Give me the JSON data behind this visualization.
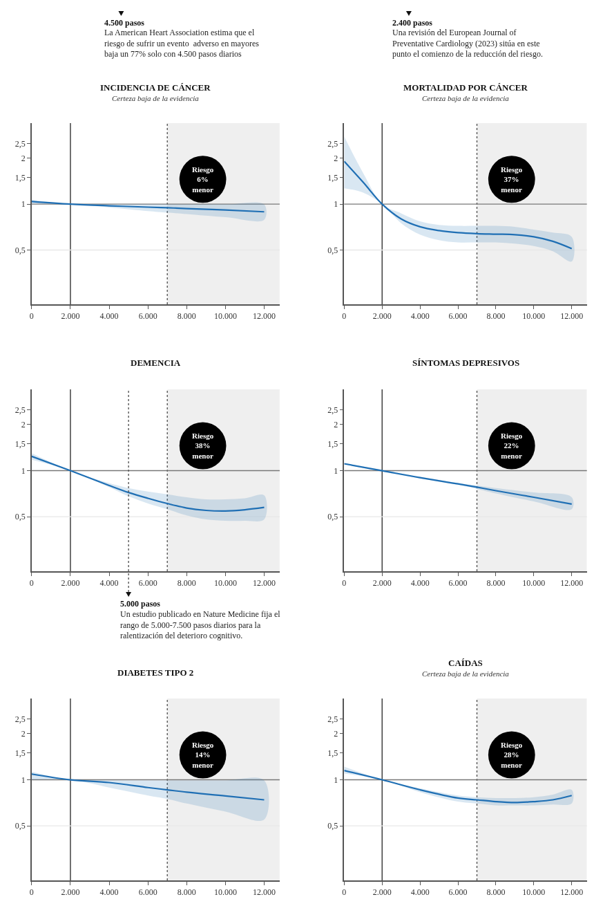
{
  "chart_data": [
    {
      "type": "line",
      "title": "INCIDENCIA DE CÁNCER",
      "subtitle": "Certeza baja de la evidencia",
      "x": [
        0,
        2000,
        4000,
        6000,
        7000,
        8000,
        10000,
        12000
      ],
      "series": [
        {
          "color": "#1f6fb4",
          "values": [
            1.04,
            1.0,
            0.975,
            0.955,
            0.946,
            0.935,
            0.915,
            0.89
          ],
          "lower": [
            1.01,
            1.0,
            0.95,
            0.9,
            0.88,
            0.86,
            0.82,
            0.79
          ],
          "upper": [
            1.07,
            1.0,
            0.995,
            0.995,
            0.995,
            0.995,
            0.995,
            0.995
          ]
        }
      ],
      "xlim": [
        0,
        12800
      ],
      "xticks": [
        0,
        {
          "value": 2000,
          "label": "2.000"
        },
        {
          "value": 4000,
          "label": "4.000"
        },
        {
          "value": 6000,
          "label": "6.000"
        },
        {
          "value": 8000,
          "label": "8.000"
        },
        {
          "value": 10000,
          "label": "10.000"
        },
        {
          "value": 12000,
          "label": "12.000"
        }
      ],
      "ylim": [
        0.22,
        3.4
      ],
      "yticks": [
        {
          "value": 0.5,
          "label": "0,5"
        },
        1,
        {
          "value": 1.5,
          "label": "1,5"
        },
        2,
        {
          "value": 2.5,
          "label": "2,5"
        }
      ],
      "log": true,
      "marker": "none",
      "line_style": "solid",
      "ref_lines": [
        {
          "axis": "x",
          "value": 2000,
          "color": "#333333",
          "line_style": "solid"
        },
        {
          "axis": "x",
          "value": 7000,
          "color": "#555555",
          "line_style": "dotted"
        },
        {
          "axis": "y",
          "value": 1,
          "color": "#777777",
          "line_style": "solid"
        },
        {
          "axis": "y",
          "value": 0.5,
          "color": "#e8e8e8",
          "line_style": "solid"
        }
      ],
      "bands": [
        {
          "axis": "x",
          "from": 7000,
          "to": 12800,
          "color": "#efefef"
        }
      ],
      "annotations": [
        "Riesgo\n6%\nmenor",
        "4.500 pasos",
        "La American Heart Association estima que el\nriesgo de sufrir un evento  adverso en mayores\nbaja un 77% solo con 4.500 pasos diarios"
      ]
    },
    {
      "type": "line",
      "title": "MORTALIDAD POR CÁNCER",
      "subtitle": "Certeza baja de la evidencia",
      "x": [
        0,
        1000,
        2000,
        3000,
        4000,
        5000,
        6000,
        7000,
        8000,
        9000,
        10000,
        11000,
        12000
      ],
      "series": [
        {
          "color": "#1f6fb4",
          "values": [
            1.91,
            1.39,
            1.0,
            0.8,
            0.71,
            0.67,
            0.65,
            0.64,
            0.635,
            0.63,
            0.61,
            0.57,
            0.51
          ],
          "lower": [
            1.27,
            1.19,
            1.0,
            0.75,
            0.63,
            0.58,
            0.56,
            0.56,
            0.56,
            0.55,
            0.53,
            0.49,
            0.42
          ],
          "upper": [
            2.77,
            1.6,
            1.0,
            0.87,
            0.77,
            0.73,
            0.72,
            0.72,
            0.72,
            0.71,
            0.68,
            0.65,
            0.61
          ]
        }
      ],
      "xlim": [
        0,
        12800
      ],
      "xticks": [
        0,
        {
          "value": 2000,
          "label": "2.000"
        },
        {
          "value": 4000,
          "label": "4.000"
        },
        {
          "value": 6000,
          "label": "6.000"
        },
        {
          "value": 8000,
          "label": "8.000"
        },
        {
          "value": 10000,
          "label": "10.000"
        },
        {
          "value": 12000,
          "label": "12.000"
        }
      ],
      "ylim": [
        0.22,
        3.4
      ],
      "yticks": [
        {
          "value": 0.5,
          "label": "0,5"
        },
        1,
        {
          "value": 1.5,
          "label": "1,5"
        },
        2,
        {
          "value": 2.5,
          "label": "2,5"
        }
      ],
      "log": true,
      "marker": "none",
      "line_style": "solid",
      "ref_lines": [
        {
          "axis": "x",
          "value": 2000,
          "color": "#333333",
          "line_style": "solid"
        },
        {
          "axis": "x",
          "value": 7000,
          "color": "#555555",
          "line_style": "dotted"
        },
        {
          "axis": "y",
          "value": 1,
          "color": "#777777",
          "line_style": "solid"
        },
        {
          "axis": "y",
          "value": 0.5,
          "color": "#e8e8e8",
          "line_style": "solid"
        }
      ],
      "bands": [
        {
          "axis": "x",
          "from": 7000,
          "to": 12800,
          "color": "#efefef"
        }
      ],
      "annotations": [
        "Riesgo\n37%\nmenor",
        "2.400 pasos",
        "Una revisión del European Journal of\nPreventative Cardiology (2023) sitúa en este\npunto el comienzo de la reducción del riesgo."
      ]
    },
    {
      "type": "line",
      "title": "DEMENCIA",
      "x": [
        0,
        2000,
        4000,
        5000,
        6000,
        7000,
        8000,
        9000,
        10000,
        11000,
        12000
      ],
      "series": [
        {
          "color": "#1f6fb4",
          "values": [
            1.24,
            1.0,
            0.8,
            0.72,
            0.66,
            0.61,
            0.57,
            0.55,
            0.545,
            0.555,
            0.575
          ],
          "lower": [
            1.18,
            1.0,
            0.78,
            0.68,
            0.61,
            0.56,
            0.51,
            0.48,
            0.47,
            0.47,
            0.48
          ],
          "upper": [
            1.3,
            1.0,
            0.83,
            0.77,
            0.73,
            0.7,
            0.67,
            0.65,
            0.65,
            0.66,
            0.69
          ]
        }
      ],
      "xlim": [
        0,
        12800
      ],
      "xticks": [
        0,
        {
          "value": 2000,
          "label": "2.000"
        },
        {
          "value": 4000,
          "label": "4.000"
        },
        {
          "value": 6000,
          "label": "6.000"
        },
        {
          "value": 8000,
          "label": "8.000"
        },
        {
          "value": 10000,
          "label": "10.000"
        },
        {
          "value": 12000,
          "label": "12.000"
        }
      ],
      "ylim": [
        0.22,
        3.4
      ],
      "yticks": [
        {
          "value": 0.5,
          "label": "0,5"
        },
        1,
        {
          "value": 1.5,
          "label": "1,5"
        },
        2,
        {
          "value": 2.5,
          "label": "2,5"
        }
      ],
      "log": true,
      "marker": "none",
      "line_style": "solid",
      "ref_lines": [
        {
          "axis": "x",
          "value": 2000,
          "color": "#333333",
          "line_style": "solid"
        },
        {
          "axis": "x",
          "value": 5000,
          "color": "#555555",
          "line_style": "dotted",
          "label": "5.000 pasos"
        },
        {
          "axis": "x",
          "value": 7000,
          "color": "#555555",
          "line_style": "dotted"
        },
        {
          "axis": "y",
          "value": 1,
          "color": "#777777",
          "line_style": "solid"
        },
        {
          "axis": "y",
          "value": 0.5,
          "color": "#e8e8e8",
          "line_style": "solid"
        }
      ],
      "bands": [
        {
          "axis": "x",
          "from": 7000,
          "to": 12800,
          "color": "#efefef"
        }
      ],
      "annotations": [
        "Riesgo\n38%\nmenor",
        "Un estudio publicado en Nature Medicine fija el\nrango de 5.000-7.500 pasos diarios para la\nralentización del deterioro cognitivo."
      ]
    },
    {
      "type": "line",
      "title": "SÍNTOMAS DEPRESIVOS",
      "x": [
        0,
        2000,
        4000,
        6000,
        7000,
        8000,
        10000,
        12000
      ],
      "series": [
        {
          "color": "#1f6fb4",
          "values": [
            1.11,
            1.0,
            0.9,
            0.82,
            0.78,
            0.74,
            0.67,
            0.605
          ],
          "lower": [
            1.1,
            0.99,
            0.89,
            0.81,
            0.76,
            0.71,
            0.63,
            0.56
          ],
          "upper": [
            1.12,
            1.01,
            0.91,
            0.83,
            0.8,
            0.77,
            0.72,
            0.67
          ]
        }
      ],
      "xlim": [
        0,
        12800
      ],
      "xticks": [
        0,
        {
          "value": 2000,
          "label": "2.000"
        },
        {
          "value": 4000,
          "label": "4.000"
        },
        {
          "value": 6000,
          "label": "6.000"
        },
        {
          "value": 8000,
          "label": "8.000"
        },
        {
          "value": 10000,
          "label": "10.000"
        },
        {
          "value": 12000,
          "label": "12.000"
        }
      ],
      "ylim": [
        0.22,
        3.4
      ],
      "yticks": [
        {
          "value": 0.5,
          "label": "0,5"
        },
        1,
        {
          "value": 1.5,
          "label": "1,5"
        },
        2,
        {
          "value": 2.5,
          "label": "2,5"
        }
      ],
      "log": true,
      "marker": "none",
      "line_style": "solid",
      "ref_lines": [
        {
          "axis": "x",
          "value": 2000,
          "color": "#333333",
          "line_style": "solid"
        },
        {
          "axis": "x",
          "value": 7000,
          "color": "#555555",
          "line_style": "dotted"
        },
        {
          "axis": "y",
          "value": 1,
          "color": "#777777",
          "line_style": "solid"
        },
        {
          "axis": "y",
          "value": 0.5,
          "color": "#e8e8e8",
          "line_style": "solid"
        }
      ],
      "bands": [
        {
          "axis": "x",
          "from": 7000,
          "to": 12800,
          "color": "#efefef"
        }
      ],
      "annotations": [
        "Riesgo\n22%\nmenor"
      ]
    },
    {
      "type": "line",
      "title": "DIABETES TIPO 2",
      "x": [
        0,
        2000,
        4000,
        6000,
        7000,
        8000,
        10000,
        12000
      ],
      "series": [
        {
          "color": "#1f6fb4",
          "values": [
            1.09,
            1.0,
            0.96,
            0.89,
            0.86,
            0.83,
            0.785,
            0.74
          ],
          "lower": [
            1.0,
            1.0,
            0.89,
            0.79,
            0.75,
            0.7,
            0.62,
            0.55
          ],
          "upper": [
            1.13,
            1.0,
            0.99,
            0.99,
            0.99,
            0.99,
            0.99,
            0.99
          ]
        }
      ],
      "xlim": [
        0,
        12800
      ],
      "xticks": [
        0,
        {
          "value": 2000,
          "label": "2.000"
        },
        {
          "value": 4000,
          "label": "4.000"
        },
        {
          "value": 6000,
          "label": "6.000"
        },
        {
          "value": 8000,
          "label": "8.000"
        },
        {
          "value": 10000,
          "label": "10.000"
        },
        {
          "value": 12000,
          "label": "12.000"
        }
      ],
      "ylim": [
        0.22,
        3.4
      ],
      "yticks": [
        {
          "value": 0.5,
          "label": "0,5"
        },
        1,
        {
          "value": 1.5,
          "label": "1,5"
        },
        2,
        {
          "value": 2.5,
          "label": "2,5"
        }
      ],
      "log": true,
      "marker": "none",
      "line_style": "solid",
      "ref_lines": [
        {
          "axis": "x",
          "value": 2000,
          "color": "#333333",
          "line_style": "solid"
        },
        {
          "axis": "x",
          "value": 7000,
          "color": "#555555",
          "line_style": "dotted"
        },
        {
          "axis": "y",
          "value": 1,
          "color": "#777777",
          "line_style": "solid"
        },
        {
          "axis": "y",
          "value": 0.5,
          "color": "#e8e8e8",
          "line_style": "solid"
        }
      ],
      "bands": [
        {
          "axis": "x",
          "from": 7000,
          "to": 12800,
          "color": "#efefef"
        }
      ],
      "annotations": [
        "Riesgo\n14%\nmenor"
      ]
    },
    {
      "type": "line",
      "title": "CAÍDAS",
      "subtitle": "Certeza baja de la evidencia",
      "x": [
        0,
        2000,
        4000,
        6000,
        7000,
        8000,
        9000,
        10000,
        11000,
        12000
      ],
      "series": [
        {
          "color": "#1f6fb4",
          "values": [
            1.15,
            1.0,
            0.86,
            0.76,
            0.74,
            0.72,
            0.71,
            0.72,
            0.74,
            0.79
          ],
          "lower": [
            1.1,
            1.0,
            0.83,
            0.72,
            0.7,
            0.68,
            0.68,
            0.68,
            0.69,
            0.7
          ],
          "upper": [
            1.22,
            1.0,
            0.88,
            0.79,
            0.77,
            0.76,
            0.76,
            0.77,
            0.8,
            0.86
          ]
        }
      ],
      "xlim": [
        0,
        12800
      ],
      "xticks": [
        0,
        {
          "value": 2000,
          "label": "2.000"
        },
        {
          "value": 4000,
          "label": "4.000"
        },
        {
          "value": 6000,
          "label": "6.000"
        },
        {
          "value": 8000,
          "label": "8.000"
        },
        {
          "value": 10000,
          "label": "10.000"
        },
        {
          "value": 12000,
          "label": "12.000"
        }
      ],
      "ylim": [
        0.22,
        3.4
      ],
      "yticks": [
        {
          "value": 0.5,
          "label": "0,5"
        },
        1,
        {
          "value": 1.5,
          "label": "1,5"
        },
        2,
        {
          "value": 2.5,
          "label": "2,5"
        }
      ],
      "log": true,
      "marker": "none",
      "line_style": "solid",
      "ref_lines": [
        {
          "axis": "x",
          "value": 2000,
          "color": "#333333",
          "line_style": "solid"
        },
        {
          "axis": "x",
          "value": 7000,
          "color": "#555555",
          "line_style": "dotted"
        },
        {
          "axis": "y",
          "value": 1,
          "color": "#777777",
          "line_style": "solid"
        },
        {
          "axis": "y",
          "value": 0.5,
          "color": "#e8e8e8",
          "line_style": "solid"
        }
      ],
      "bands": [
        {
          "axis": "x",
          "from": 7000,
          "to": 12800,
          "color": "#efefef"
        }
      ],
      "annotations": [
        "Riesgo\n28%\nmenor"
      ]
    }
  ]
}
